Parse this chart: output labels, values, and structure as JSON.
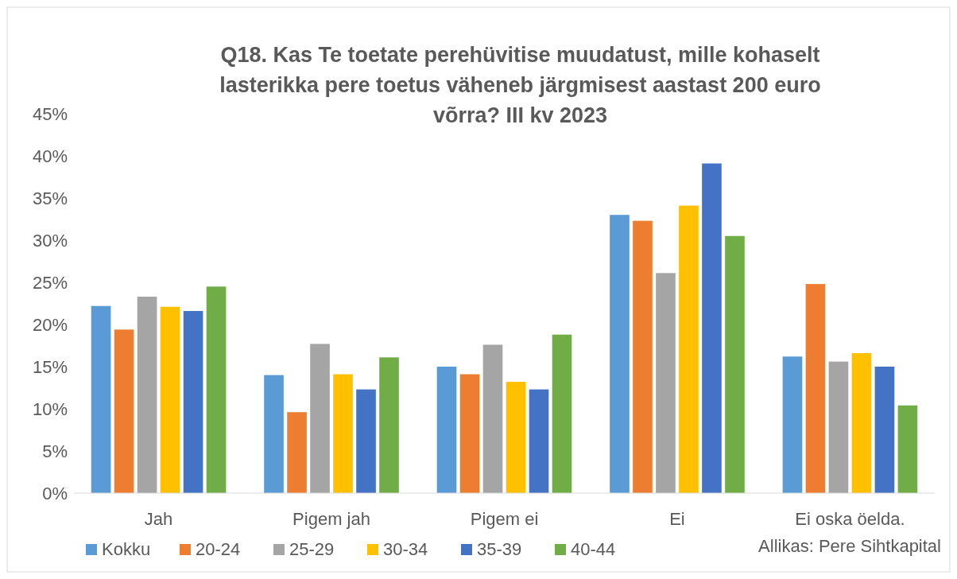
{
  "chart_data": {
    "type": "bar",
    "title": "Q18. Kas Te toetate perehüvitise muudatust, mille kohaselt lasterikka pere toetus väheneb järgmisest aastast 200 euro võrra? III kv 2023",
    "categories": [
      "Jah",
      "Pigem jah",
      "Pigem ei",
      "Ei",
      "Ei oska öelda."
    ],
    "series": [
      {
        "name": "Kokku",
        "color": "#5b9bd5",
        "values": [
          22.2,
          14.0,
          15.0,
          33.0,
          16.2
        ]
      },
      {
        "name": "20-24",
        "color": "#ed7d31",
        "values": [
          19.4,
          9.6,
          14.1,
          32.3,
          24.8
        ]
      },
      {
        "name": "25-29",
        "color": "#a5a5a5",
        "values": [
          23.3,
          17.7,
          17.6,
          26.1,
          15.6
        ]
      },
      {
        "name": "30-34",
        "color": "#ffc000",
        "values": [
          22.1,
          14.1,
          13.2,
          34.1,
          16.6
        ]
      },
      {
        "name": "35-39",
        "color": "#4472c4",
        "values": [
          21.6,
          12.3,
          12.3,
          39.1,
          15.0
        ]
      },
      {
        "name": "40-44",
        "color": "#70ad47",
        "values": [
          24.5,
          16.1,
          18.8,
          30.5,
          10.4
        ]
      }
    ],
    "ylim": [
      0,
      45
    ],
    "yticks": [
      {
        "value": 0,
        "label": "0%"
      },
      {
        "value": 5,
        "label": "5%"
      },
      {
        "value": 10,
        "label": "10%"
      },
      {
        "value": 15,
        "label": "15%"
      },
      {
        "value": 20,
        "label": "20%"
      },
      {
        "value": 25,
        "label": "25%"
      },
      {
        "value": 30,
        "label": "30%"
      },
      {
        "value": 35,
        "label": "35%"
      },
      {
        "value": 40,
        "label": "40%"
      },
      {
        "value": 45,
        "label": "45%"
      }
    ],
    "legend": "bottom",
    "annotations": [
      "Allikas: Pere Sihtkapital"
    ]
  }
}
